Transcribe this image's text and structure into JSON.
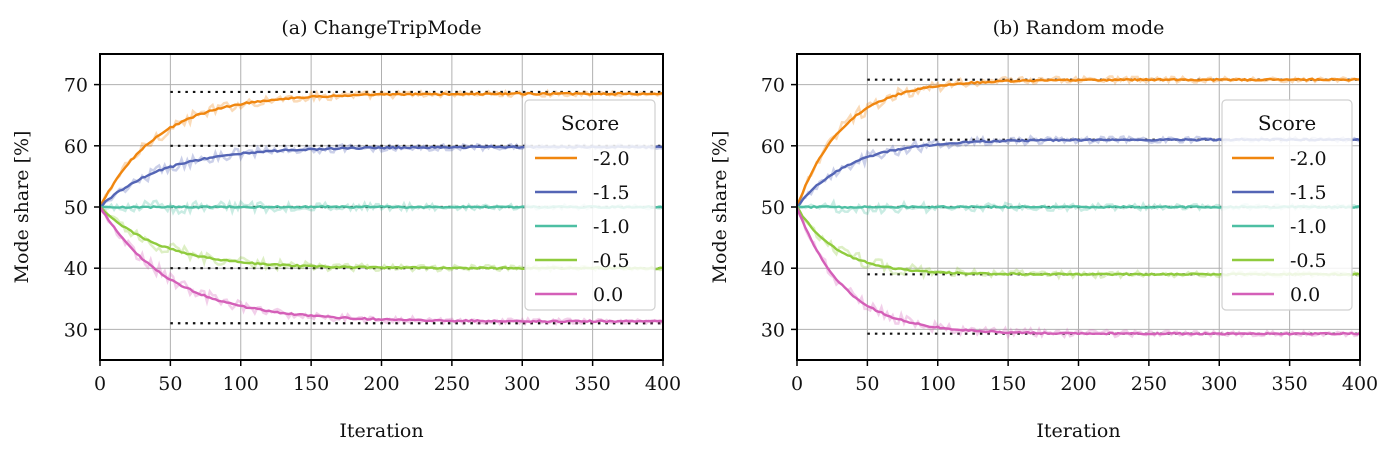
{
  "figure": {
    "charts": [
      "a",
      "b"
    ]
  },
  "chart_data": [
    {
      "type": "line",
      "title": "(a) ChangeTripMode",
      "xlabel": "Iteration",
      "ylabel": "Mode share [%]",
      "xlim": [
        0,
        400
      ],
      "ylim": [
        25,
        75
      ],
      "xticks": [
        0,
        50,
        100,
        150,
        200,
        250,
        300,
        350,
        400
      ],
      "yticks": [
        30,
        40,
        50,
        60,
        70
      ],
      "grid": true,
      "legend": {
        "title": "Score",
        "placement": "center-right"
      },
      "series": [
        {
          "name": "-2.0",
          "color": "#f0860f",
          "start": 50,
          "final": 68.5,
          "rate": 0.024,
          "target": 68.8,
          "target_from": 50
        },
        {
          "name": "-1.5",
          "color": "#5465b5",
          "start": 50,
          "final": 59.8,
          "rate": 0.022,
          "target": 60.0,
          "target_from": 50
        },
        {
          "name": "-1.0",
          "color": "#4dbfa3",
          "start": 50,
          "final": 50.0,
          "rate": 0.03,
          "target": 50.0,
          "target_from": 50
        },
        {
          "name": "-0.5",
          "color": "#8fcb3d",
          "start": 50,
          "final": 40.0,
          "rate": 0.023,
          "target": 40.0,
          "target_from": 50
        },
        {
          "name": "0.0",
          "color": "#d45fb8",
          "start": 50,
          "final": 31.3,
          "rate": 0.02,
          "target": 31.0,
          "target_from": 50
        }
      ]
    },
    {
      "type": "line",
      "title": "(b) Random mode",
      "xlabel": "Iteration",
      "ylabel": "Mode share [%]",
      "xlim": [
        0,
        400
      ],
      "ylim": [
        25,
        75
      ],
      "xticks": [
        0,
        50,
        100,
        150,
        200,
        250,
        300,
        350,
        400
      ],
      "yticks": [
        30,
        40,
        50,
        60,
        70
      ],
      "grid": true,
      "legend": {
        "title": "Score",
        "placement": "center-right"
      },
      "series": [
        {
          "name": "-2.0",
          "color": "#f0860f",
          "start": 50,
          "final": 70.8,
          "rate": 0.03,
          "target": 70.8,
          "target_from": 50
        },
        {
          "name": "-1.5",
          "color": "#5465b5",
          "start": 50,
          "final": 61.0,
          "rate": 0.027,
          "target": 61.0,
          "target_from": 50
        },
        {
          "name": "-1.0",
          "color": "#4dbfa3",
          "start": 50,
          "final": 50.0,
          "rate": 0.03,
          "target": 50.0,
          "target_from": 50
        },
        {
          "name": "-0.5",
          "color": "#8fcb3d",
          "start": 50,
          "final": 39.0,
          "rate": 0.035,
          "target": 39.0,
          "target_from": 50
        },
        {
          "name": "0.0",
          "color": "#d45fb8",
          "start": 50,
          "final": 29.3,
          "rate": 0.03,
          "target": 29.3,
          "target_from": 50
        }
      ]
    }
  ]
}
